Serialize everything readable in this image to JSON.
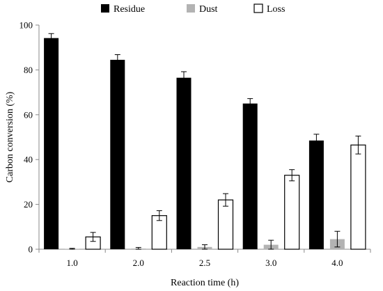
{
  "chart_data": {
    "type": "bar",
    "xlabel": "Reaction time (h)",
    "ylabel": "Carbon conversion (%)",
    "ylim": [
      0,
      100
    ],
    "yticks": [
      0,
      20,
      40,
      60,
      80,
      100
    ],
    "categories": [
      "1.0",
      "2.0",
      "2.5",
      "3.0",
      "4.0"
    ],
    "legend_position": "top",
    "grid": false,
    "series": [
      {
        "name": "Residue",
        "color": "#000000",
        "stroke": "#000000",
        "values": [
          94.2,
          84.5,
          76.5,
          65.0,
          48.5
        ],
        "errors": [
          2.0,
          2.3,
          2.7,
          2.2,
          2.8
        ]
      },
      {
        "name": "Dust",
        "color": "#b3b3b3",
        "stroke": "#b3b3b3",
        "values": [
          0.1,
          0.3,
          1.0,
          2.0,
          4.5
        ],
        "errors": [
          0.3,
          0.5,
          1.0,
          2.0,
          3.5
        ]
      },
      {
        "name": "Loss",
        "color": "#ffffff",
        "stroke": "#000000",
        "values": [
          5.5,
          15.0,
          22.0,
          33.0,
          46.5
        ],
        "errors": [
          2.0,
          2.2,
          2.8,
          2.5,
          4.0
        ]
      }
    ]
  }
}
